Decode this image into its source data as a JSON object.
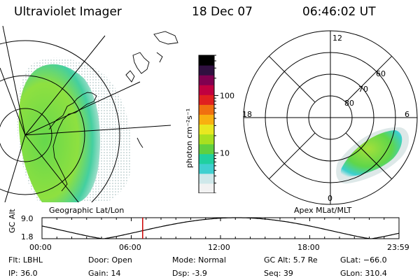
{
  "header": {
    "instrument": "Ultraviolet Imager",
    "date": "18 Dec 07",
    "time": "06:46:02 UT"
  },
  "chart_data": [
    {
      "type": "map",
      "title": "Geographic Lat/Lon",
      "description_label": "Geographic Lat/Lon"
    },
    {
      "type": "heatmap_colorbar",
      "label": "photon cm⁻²s⁻¹",
      "scale": "log",
      "tick_labels": [
        "100",
        "10"
      ],
      "tick_values": [
        100,
        10
      ],
      "range": [
        2,
        500
      ],
      "colors": [
        "#f2f2f2",
        "#cfe8ea",
        "#40d0d0",
        "#20d0a0",
        "#60d040",
        "#a8e020",
        "#e8e820",
        "#f8b010",
        "#f07010",
        "#e02020",
        "#c00040",
        "#800050",
        "#301040",
        "#000000"
      ]
    },
    {
      "type": "polar",
      "title": "Apex MLat/MLT",
      "mlt_labels": [
        "12",
        "18",
        "6",
        "0"
      ],
      "mlat_labels": [
        "60",
        "70",
        "80"
      ],
      "mlat_rings": [
        50,
        60,
        70,
        80
      ]
    },
    {
      "type": "line",
      "ylabel": "GC Alt",
      "ytick_labels": [
        "9.0",
        "1.8"
      ],
      "ylim": [
        1.8,
        9.0
      ],
      "xtick_labels": [
        "00:00",
        "06:00",
        "12:00",
        "18:00",
        "23:59"
      ],
      "xlim_hours": [
        0,
        24
      ],
      "current_time_hours": 6.767,
      "orbit": {
        "apogee_hours": 13.1,
        "period_hours": 18.0,
        "min_alt": 1.8,
        "max_alt": 9.0
      }
    }
  ],
  "info": {
    "flt": "Flt: LBHL",
    "ip": "IP: 36.0",
    "door": "Door: Open",
    "gain": "Gain: 14",
    "mode": "Mode: Normal",
    "dsp": "Dsp:    -3.9",
    "gcalt": "GC Alt: 5.7 Re",
    "seq": "Seq: 39",
    "glat": "GLat: −66.0",
    "glon": "GLon: 310.4"
  },
  "colors": {
    "green": "#74d84a",
    "cyan": "#3ccfcf",
    "light": "#dde8e8",
    "marker": "#cc0000"
  }
}
